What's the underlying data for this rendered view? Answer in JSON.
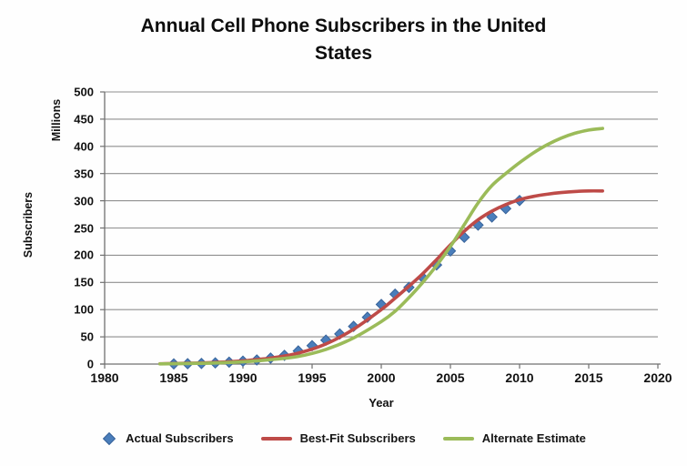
{
  "title_line1": "Annual Cell Phone Subscribers in the United",
  "title_line2": "States",
  "axes": {
    "x_label": "Year",
    "y_label_outer": "Subscribers",
    "y_label_inner": "Millions",
    "x_ticks": [
      1980,
      1985,
      1990,
      1995,
      2000,
      2005,
      2010,
      2015,
      2020
    ],
    "y_ticks": [
      0,
      50,
      100,
      150,
      200,
      250,
      300,
      350,
      400,
      450,
      500
    ]
  },
  "legend": [
    {
      "label": "Actual Subscribers",
      "marker": "diamond",
      "color": "#4A7EBB"
    },
    {
      "label": "Best-Fit Subscribers",
      "marker": "line",
      "color": "#BE4B48"
    },
    {
      "label": "Alternate Estimate",
      "marker": "line",
      "color": "#9BBB59"
    }
  ],
  "colors": {
    "actual": "#4A7EBB",
    "actual_border": "#38639A",
    "best_fit": "#BE4B48",
    "alternate": "#9BBB59",
    "gridline": "#8f8f8f",
    "axis": "#707070",
    "text": "#111111"
  },
  "chart_data": {
    "type": "line",
    "title": "Annual Cell Phone Subscribers in the United States",
    "xlabel": "Year",
    "ylabel": "Subscribers (Millions)",
    "xlim": [
      1980,
      2020
    ],
    "ylim": [
      0,
      500
    ],
    "x_tick_step": 5,
    "y_tick_step": 50,
    "grid": "horizontal",
    "legend_position": "bottom",
    "series": [
      {
        "name": "Actual Subscribers",
        "type": "scatter",
        "marker": "diamond",
        "color": "#4A7EBB",
        "points": [
          [
            1985,
            0.3
          ],
          [
            1986,
            0.7
          ],
          [
            1987,
            1.2
          ],
          [
            1988,
            2.1
          ],
          [
            1989,
            3.5
          ],
          [
            1990,
            5.3
          ],
          [
            1991,
            7.6
          ],
          [
            1992,
            11.0
          ],
          [
            1993,
            16.0
          ],
          [
            1994,
            24.1
          ],
          [
            1995,
            33.8
          ],
          [
            1996,
            44.0
          ],
          [
            1997,
            55.3
          ],
          [
            1998,
            69.2
          ],
          [
            1999,
            86.0
          ],
          [
            2000,
            109.5
          ],
          [
            2001,
            128.4
          ],
          [
            2002,
            140.8
          ],
          [
            2003,
            158.7
          ],
          [
            2004,
            182.1
          ],
          [
            2005,
            207.9
          ],
          [
            2006,
            233.0
          ],
          [
            2007,
            255.4
          ],
          [
            2008,
            270.3
          ],
          [
            2009,
            285.6
          ],
          [
            2010,
            300.5
          ]
        ]
      },
      {
        "name": "Best-Fit Subscribers",
        "type": "line",
        "color": "#BE4B48",
        "points": [
          [
            1984,
            0.5
          ],
          [
            1986,
            1.5
          ],
          [
            1988,
            3
          ],
          [
            1990,
            6
          ],
          [
            1992,
            11
          ],
          [
            1994,
            20
          ],
          [
            1996,
            37
          ],
          [
            1998,
            64
          ],
          [
            2000,
            100
          ],
          [
            2001,
            121
          ],
          [
            2002,
            143
          ],
          [
            2003,
            166
          ],
          [
            2004,
            192
          ],
          [
            2005,
            219
          ],
          [
            2006,
            244
          ],
          [
            2007,
            265
          ],
          [
            2008,
            281
          ],
          [
            2009,
            293
          ],
          [
            2010,
            302
          ],
          [
            2011,
            308
          ],
          [
            2012,
            312
          ],
          [
            2013,
            315
          ],
          [
            2014,
            317
          ],
          [
            2015,
            318
          ],
          [
            2016,
            318
          ]
        ]
      },
      {
        "name": "Alternate Estimate",
        "type": "line",
        "color": "#9BBB59",
        "points": [
          [
            1984,
            0.3
          ],
          [
            1986,
            1
          ],
          [
            1988,
            2
          ],
          [
            1990,
            4
          ],
          [
            1992,
            8
          ],
          [
            1994,
            14
          ],
          [
            1996,
            27
          ],
          [
            1998,
            48
          ],
          [
            2000,
            78
          ],
          [
            2001,
            97
          ],
          [
            2002,
            122
          ],
          [
            2003,
            150
          ],
          [
            2004,
            181
          ],
          [
            2005,
            216
          ],
          [
            2006,
            256
          ],
          [
            2007,
            296
          ],
          [
            2008,
            328
          ],
          [
            2009,
            350
          ],
          [
            2010,
            370
          ],
          [
            2011,
            388
          ],
          [
            2012,
            403
          ],
          [
            2013,
            415
          ],
          [
            2014,
            424
          ],
          [
            2015,
            430
          ],
          [
            2016,
            433
          ]
        ]
      }
    ]
  }
}
